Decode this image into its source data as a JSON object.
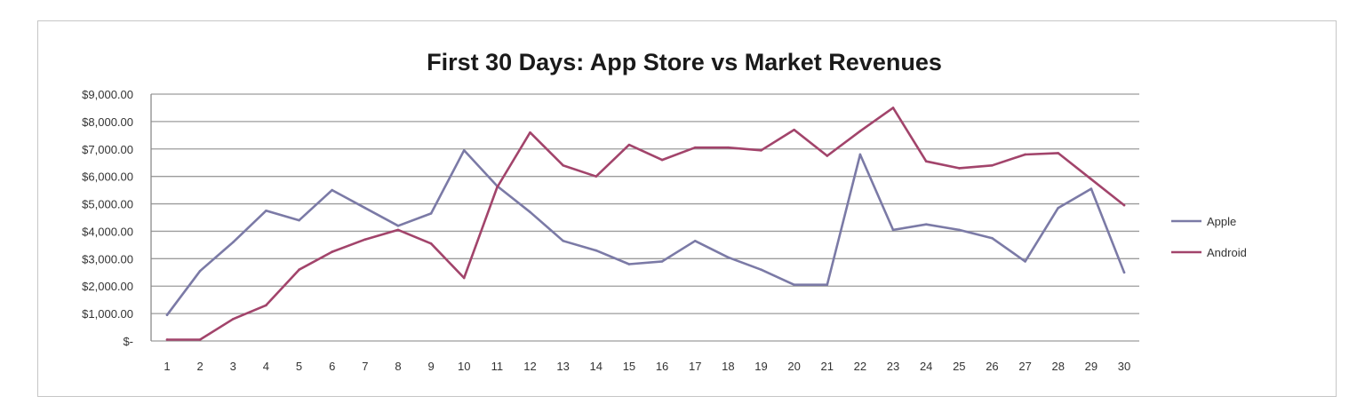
{
  "chart_data": {
    "type": "line",
    "title": "First 30 Days: App Store vs Market Revenues",
    "xlabel": "",
    "ylabel": "",
    "categories": [
      "1",
      "2",
      "3",
      "4",
      "5",
      "6",
      "7",
      "8",
      "9",
      "10",
      "11",
      "12",
      "13",
      "14",
      "15",
      "16",
      "17",
      "18",
      "19",
      "20",
      "21",
      "22",
      "23",
      "24",
      "25",
      "26",
      "27",
      "28",
      "29",
      "30"
    ],
    "y_ticks": [
      "$-",
      "$1,000.00",
      "$2,000.00",
      "$3,000.00",
      "$4,000.00",
      "$5,000.00",
      "$6,000.00",
      "$7,000.00",
      "$8,000.00",
      "$9,000.00"
    ],
    "ylim": [
      0,
      9000
    ],
    "grid": true,
    "legend_position": "right",
    "series": [
      {
        "name": "Apple",
        "color": "#7b7aa6",
        "values": [
          950,
          2550,
          3600,
          4750,
          4400,
          5500,
          4850,
          4200,
          4650,
          6950,
          5650,
          4700,
          3650,
          3300,
          2800,
          2900,
          3650,
          3050,
          2600,
          2050,
          2050,
          6800,
          4050,
          4250,
          4050,
          3750,
          2900,
          4850,
          5550,
          2500
        ]
      },
      {
        "name": "Android",
        "color": "#a2446b",
        "values": [
          50,
          50,
          800,
          1300,
          2600,
          3250,
          3700,
          4050,
          3550,
          2300,
          5600,
          7600,
          6400,
          6000,
          7150,
          6600,
          7050,
          7050,
          6950,
          7700,
          6750,
          7650,
          8500,
          6550,
          6300,
          6400,
          6800,
          6850,
          5900,
          4950
        ]
      }
    ]
  }
}
